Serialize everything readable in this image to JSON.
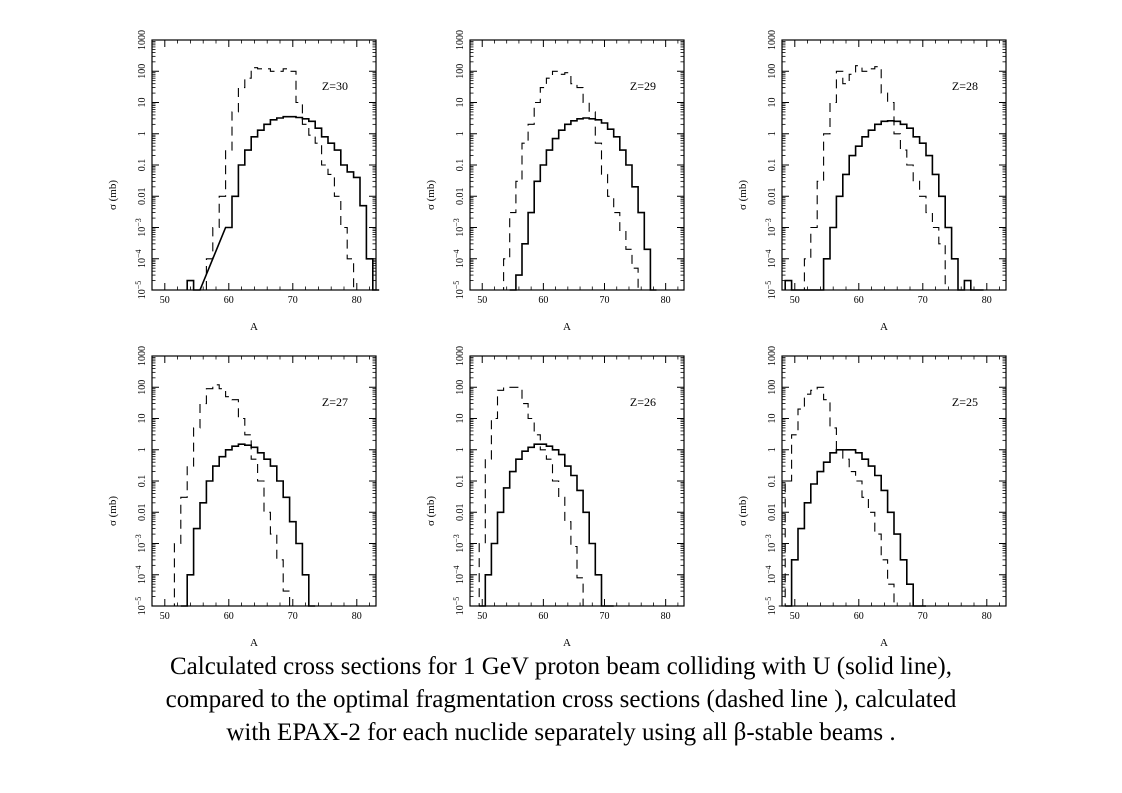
{
  "chart_data": [
    {
      "type": "line",
      "panel_label": "Z=30",
      "xlabel": "A",
      "ylabel": "σ (mb)",
      "xlim": [
        48,
        83
      ],
      "xticks": [
        "50",
        "60",
        "70",
        "80"
      ],
      "yscale": "log",
      "ylim": [
        1e-05,
        1000
      ],
      "yticks": [
        "10-5",
        "10-4",
        "10-3",
        "0.01",
        "0.1",
        "1",
        "10",
        "100",
        "1000"
      ],
      "series": [
        {
          "style": "solid",
          "x": [
            54,
            55,
            60,
            61,
            62,
            63,
            64,
            65,
            66,
            67,
            68,
            69,
            70,
            71,
            72,
            73,
            74,
            75,
            76,
            77,
            78,
            79,
            80,
            81,
            82,
            83
          ],
          "y": [
            2e-05,
            1e-05,
            0.001,
            0.01,
            0.1,
            0.3,
            0.8,
            1.3,
            2,
            2.8,
            3.2,
            3.5,
            3.5,
            3.3,
            3,
            2.5,
            1.5,
            0.8,
            0.5,
            0.3,
            0.1,
            0.06,
            0.04,
            0.005,
            0.0001,
            1e-05
          ]
        },
        {
          "style": "dashed",
          "x": [
            57,
            58,
            59,
            60,
            61,
            62,
            63,
            64,
            65,
            66,
            67,
            68,
            69,
            70,
            71,
            72,
            73,
            74,
            75,
            76,
            77,
            78,
            79,
            80
          ],
          "y": [
            0.0001,
            0.001,
            0.01,
            0.3,
            5,
            30,
            60,
            130,
            120,
            120,
            100,
            100,
            120,
            100,
            10,
            2,
            0.9,
            0.5,
            0.1,
            0.05,
            0.01,
            0.001,
            0.0001,
            1e-05
          ]
        }
      ]
    },
    {
      "type": "line",
      "panel_label": "Z=29",
      "xlabel": "A",
      "ylabel": "σ (mb)",
      "xlim": [
        48,
        83
      ],
      "xticks": [
        "50",
        "60",
        "70",
        "80"
      ],
      "yscale": "log",
      "ylim": [
        1e-05,
        1000
      ],
      "yticks": [
        "10-5",
        "10-4",
        "10-3",
        "0.01",
        "0.1",
        "1",
        "10",
        "100",
        "1000"
      ],
      "series": [
        {
          "style": "solid",
          "x": [
            55,
            56,
            57,
            58,
            59,
            60,
            61,
            62,
            63,
            64,
            65,
            66,
            67,
            68,
            69,
            70,
            71,
            72,
            73,
            74,
            75,
            76,
            77,
            78
          ],
          "y": [
            1e-05,
            3e-05,
            0.0003,
            0.003,
            0.03,
            0.1,
            0.3,
            0.7,
            1.3,
            2,
            2.6,
            3,
            3.2,
            3,
            2.8,
            2.2,
            1.4,
            0.8,
            0.3,
            0.1,
            0.02,
            0.003,
            0.0002,
            1e-05
          ]
        },
        {
          "style": "dashed",
          "x": [
            53,
            54,
            55,
            56,
            57,
            58,
            59,
            60,
            61,
            62,
            63,
            64,
            65,
            66,
            67,
            68,
            69,
            70,
            71,
            72,
            73,
            74,
            75,
            76
          ],
          "y": [
            1e-05,
            0.0001,
            0.003,
            0.03,
            0.5,
            2,
            10,
            30,
            60,
            100,
            80,
            90,
            40,
            30,
            10,
            5,
            0.5,
            0.05,
            0.01,
            0.003,
            0.0008,
            0.0002,
            5e-05,
            1e-05
          ]
        }
      ]
    },
    {
      "type": "line",
      "panel_label": "Z=28",
      "xlabel": "A",
      "ylabel": "σ (mb)",
      "xlim": [
        48,
        83
      ],
      "xticks": [
        "50",
        "60",
        "70",
        "80"
      ],
      "yscale": "log",
      "ylim": [
        1e-05,
        1000
      ],
      "yticks": [
        "10-5",
        "10-4",
        "10-3",
        "0.01",
        "0.1",
        "1",
        "10",
        "100",
        "1000"
      ],
      "series": [
        {
          "style": "solid",
          "x": [
            49,
            50,
            54,
            55,
            56,
            57,
            58,
            59,
            60,
            61,
            62,
            63,
            64,
            65,
            66,
            67,
            68,
            69,
            70,
            71,
            72,
            73,
            74,
            75,
            76,
            77,
            78,
            79
          ],
          "y": [
            2e-05,
            1e-05,
            1e-05,
            0.0001,
            0.001,
            0.01,
            0.05,
            0.2,
            0.4,
            0.8,
            1.3,
            2,
            2.5,
            2.6,
            2.5,
            2,
            1.5,
            0.8,
            0.5,
            0.2,
            0.05,
            0.01,
            0.001,
            0.0001,
            1e-05,
            2e-05,
            1e-05,
            1e-05
          ]
        },
        {
          "style": "dashed",
          "x": [
            51,
            52,
            53,
            54,
            55,
            56,
            57,
            58,
            59,
            60,
            61,
            62,
            63,
            64,
            65,
            66,
            67,
            68,
            69,
            70,
            71,
            72,
            73,
            74
          ],
          "y": [
            1e-05,
            0.0001,
            0.001,
            0.03,
            1,
            10,
            100,
            40,
            80,
            150,
            100,
            120,
            140,
            20,
            10,
            1,
            0.3,
            0.1,
            0.03,
            0.01,
            0.003,
            0.001,
            0.0003,
            1e-05
          ]
        }
      ]
    },
    {
      "type": "line",
      "panel_label": "Z=27",
      "xlabel": "A",
      "ylabel": "σ (mb)",
      "xlim": [
        48,
        83
      ],
      "xticks": [
        "50",
        "60",
        "70",
        "80"
      ],
      "yscale": "log",
      "ylim": [
        1e-05,
        1000
      ],
      "yticks": [
        "10-5",
        "10-4",
        "10-3",
        "0.01",
        "0.1",
        "1",
        "10",
        "100",
        "1000"
      ],
      "series": [
        {
          "style": "solid",
          "x": [
            53,
            54,
            55,
            56,
            57,
            58,
            59,
            60,
            61,
            62,
            63,
            64,
            65,
            66,
            67,
            68,
            69,
            70,
            71,
            72,
            73
          ],
          "y": [
            1e-05,
            0.0001,
            0.003,
            0.02,
            0.1,
            0.3,
            0.6,
            1,
            1.3,
            1.5,
            1.4,
            1.2,
            0.8,
            0.5,
            0.3,
            0.1,
            0.03,
            0.005,
            0.001,
            0.0001,
            1e-05
          ]
        },
        {
          "style": "dashed",
          "x": [
            51,
            52,
            53,
            54,
            55,
            56,
            57,
            58,
            59,
            60,
            61,
            62,
            63,
            64,
            65,
            66,
            67,
            68,
            69,
            70
          ],
          "y": [
            1e-05,
            0.001,
            0.03,
            0.3,
            5,
            30,
            90,
            120,
            90,
            50,
            40,
            10,
            3,
            0.5,
            0.1,
            0.01,
            0.002,
            0.0003,
            3e-05,
            1e-05
          ]
        }
      ]
    },
    {
      "type": "line",
      "panel_label": "Z=26",
      "xlabel": "A",
      "ylabel": "σ (mb)",
      "xlim": [
        48,
        83
      ],
      "xticks": [
        "50",
        "60",
        "70",
        "80"
      ],
      "yscale": "log",
      "ylim": [
        1e-05,
        1000
      ],
      "yticks": [
        "10-5",
        "10-4",
        "10-3",
        "0.01",
        "0.1",
        "1",
        "10",
        "100",
        "1000"
      ],
      "series": [
        {
          "style": "solid",
          "x": [
            50,
            51,
            52,
            53,
            54,
            55,
            56,
            57,
            58,
            59,
            60,
            61,
            62,
            63,
            64,
            65,
            66,
            67,
            68,
            69,
            70,
            71
          ],
          "y": [
            1e-05,
            0.0001,
            0.001,
            0.01,
            0.06,
            0.2,
            0.5,
            0.9,
            1.2,
            1.5,
            1.5,
            1.3,
            1,
            0.7,
            0.3,
            0.15,
            0.05,
            0.01,
            0.001,
            0.0001,
            1e-05,
            1e-05
          ]
        },
        {
          "style": "dashed",
          "x": [
            49,
            50,
            51,
            52,
            53,
            54,
            55,
            56,
            57,
            58,
            59,
            60,
            61,
            62,
            63,
            64,
            65,
            66,
            67
          ],
          "y": [
            1e-05,
            0.001,
            0.5,
            10,
            80,
            100,
            100,
            100,
            30,
            10,
            3,
            1,
            0.5,
            0.1,
            0.03,
            0.005,
            0.0008,
            8e-05,
            1e-05
          ]
        }
      ]
    },
    {
      "type": "line",
      "panel_label": "Z=25",
      "xlabel": "A",
      "ylabel": "σ (mb)",
      "xlim": [
        48,
        83
      ],
      "xticks": [
        "50",
        "60",
        "70",
        "80"
      ],
      "yscale": "log",
      "ylim": [
        1e-05,
        1000
      ],
      "yticks": [
        "10-5",
        "10-4",
        "10-3",
        "0.01",
        "0.1",
        "1",
        "10",
        "100",
        "1000"
      ],
      "series": [
        {
          "style": "solid",
          "x": [
            49,
            50,
            51,
            52,
            53,
            54,
            55,
            56,
            57,
            58,
            59,
            60,
            61,
            62,
            63,
            64,
            65,
            66,
            67,
            68,
            69,
            70
          ],
          "y": [
            1e-05,
            0.0003,
            0.003,
            0.02,
            0.08,
            0.2,
            0.4,
            0.8,
            1,
            1,
            1,
            0.8,
            0.5,
            0.3,
            0.15,
            0.05,
            0.01,
            0.002,
            0.0003,
            5e-05,
            1e-05,
            1e-05
          ]
        },
        {
          "style": "dashed",
          "x": [
            48,
            49,
            50,
            51,
            52,
            53,
            54,
            55,
            56,
            57,
            58,
            59,
            60,
            61,
            62,
            63,
            64,
            65,
            66
          ],
          "y": [
            1e-05,
            0.1,
            3,
            20,
            60,
            80,
            100,
            40,
            5,
            1,
            0.5,
            0.2,
            0.1,
            0.03,
            0.01,
            0.002,
            0.0003,
            5e-05,
            1e-05
          ]
        }
      ]
    }
  ],
  "caption": {
    "line1": "Calculated cross sections for 1 GeV proton beam colliding with U (solid line),",
    "line2": "compared to the optimal fragmentation cross sections (dashed line ), calculated",
    "line3": "with EPAX-2 for each nuclide separately using all β-stable beams ."
  }
}
